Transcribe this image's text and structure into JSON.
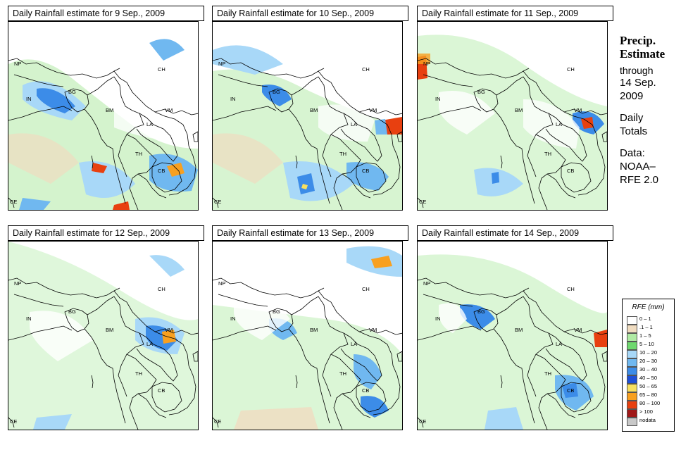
{
  "panels": [
    {
      "title": "Daily Rainfall estimate for  9 Sep., 2009"
    },
    {
      "title": "Daily Rainfall estimate for  10 Sep., 2009"
    },
    {
      "title": "Daily Rainfall estimate for  11 Sep., 2009"
    },
    {
      "title": "Daily Rainfall estimate for  12 Sep., 2009"
    },
    {
      "title": "Daily Rainfall estimate for  13 Sep., 2009"
    },
    {
      "title": "Daily Rainfall estimate for  14 Sep., 2009"
    }
  ],
  "country_labels": {
    "np": "NP",
    "in": "IN",
    "bg": "BG",
    "bm": "BM",
    "ch": "CH",
    "vm": "VM",
    "la": "LA",
    "th": "TH",
    "cb": "CB",
    "ce": "CE"
  },
  "side_info": {
    "title_line1": "Precip.",
    "title_line2": "Estimate",
    "through": "through",
    "date_line1": "14 Sep.",
    "date_line2": "2009",
    "daily_line1": "Daily",
    "daily_line2": "Totals",
    "data_line1": "Data:",
    "data_line2": "NOAA–",
    "data_line3": "RFE 2.0"
  },
  "legend": {
    "title": "RFE (mm)",
    "items": [
      {
        "label": "0 – 1",
        "color": "#ffffff"
      },
      {
        "label": ".1 – 1",
        "color": "#f0dcc0"
      },
      {
        "label": "1 – 5",
        "color": "#b0eaa4"
      },
      {
        "label": "5 – 10",
        "color": "#6ed86e"
      },
      {
        "label": "10 – 20",
        "color": "#a8d8f8"
      },
      {
        "label": "20 – 30",
        "color": "#70b8f0"
      },
      {
        "label": "30 – 40",
        "color": "#3c8ce8"
      },
      {
        "label": "40 – 50",
        "color": "#1f50d8"
      },
      {
        "label": "50 – 65",
        "color": "#f8e060"
      },
      {
        "label": "65 – 80",
        "color": "#f8a020"
      },
      {
        "label": "80 – 100",
        "color": "#e84010"
      },
      {
        "label": "> 100",
        "color": "#a01818"
      },
      {
        "label": "nodata",
        "color": "#c8c8c8"
      }
    ]
  }
}
